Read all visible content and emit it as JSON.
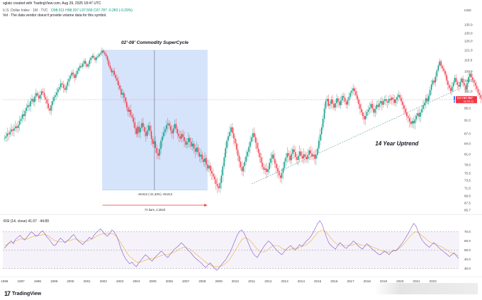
{
  "header": {
    "line1": "sglatz created with TradingView.com, Aug 29, 2025 18:47 UTC",
    "line2_prefix": "U.S. Dollar Index · 1M · TVC",
    "ohlc": "O98.011 H98.207 L97.556 C97.787 -0.283 (-0.29%)",
    "line3": "Vol · The data vendor doesn't provide volume data for this symbol."
  },
  "currency_label": "USD",
  "brand": {
    "logo_mark": "17",
    "name": "TradingView"
  },
  "colors": {
    "up": "#089981",
    "down": "#f23645",
    "box": "#d6e4fb",
    "trend": "#5b9aa8",
    "rsi": "#7e57c2",
    "rsi_ma": "#f2b02f"
  },
  "chart_data": [
    {
      "type": "candlestick",
      "title": "",
      "x_axis_years": [
        "1996",
        "1997",
        "1998",
        "1999",
        "2000",
        "2001",
        "2002",
        "2003",
        "2004",
        "2005",
        "2006",
        "2007",
        "2008",
        "2009",
        "2010",
        "2011",
        "2012",
        "2013",
        "2014",
        "2015",
        "2016",
        "2017",
        "2018",
        "2019",
        "2020",
        "2021",
        "2022"
      ],
      "y_ticks": [
        65.7,
        67.5,
        69.5,
        71.5,
        73.5,
        75.5,
        78.0,
        81.0,
        84.0,
        87.0,
        91.0,
        95.0,
        97.5,
        101.0,
        105.0,
        109.0,
        115.0,
        121.0,
        126.0,
        130.0,
        135.0
      ],
      "ylim": [
        65.7,
        135.0
      ],
      "last_price": {
        "symbol": "DXY",
        "value": "97.787",
        "countdown": "0d 05:13"
      },
      "monthly_closes": {
        "start": 1996.0,
        "step": 0.0833,
        "values": [
          85.7,
          86.2,
          87.1,
          86.8,
          87.6,
          88.3,
          87.9,
          88.6,
          89.2,
          88.7,
          89.6,
          90.8,
          91.5,
          93.0,
          92.4,
          94.1,
          95.2,
          96.0,
          95.6,
          97.3,
          98.1,
          97.0,
          99.0,
          100.3,
          99.4,
          98.2,
          99.6,
          101.0,
          100.4,
          98.8,
          97.9,
          96.5,
          95.0,
          94.2,
          96.0,
          97.3,
          98.8,
          99.5,
          100.6,
          101.8,
          102.5,
          104.0,
          103.6,
          102.2,
          101.5,
          103.0,
          104.6,
          105.8,
          107.1,
          108.5,
          107.6,
          106.2,
          107.9,
          109.4,
          110.8,
          112.0,
          111.5,
          113.2,
          114.6,
          113.0,
          111.6,
          112.8,
          114.9,
          116.5,
          117.7,
          116.4,
          115.1,
          116.8,
          117.4,
          118.6,
          119.4,
          120.8,
          119.6,
          118.7,
          117.3,
          114.8,
          112.1,
          110.4,
          108.6,
          109.3,
          107.5,
          106.1,
          105.0,
          103.2,
          101.9,
          99.7,
          100.4,
          98.6,
          97.1,
          95.3,
          93.8,
          94.5,
          92.7,
          91.9,
          90.4,
          88.6,
          86.9,
          89.1,
          87.4,
          88.8,
          90.2,
          89.0,
          87.6,
          86.3,
          88.0,
          89.4,
          87.8,
          85.4,
          83.9,
          84.7,
          82.8,
          81.3,
          80.6,
          82.5,
          84.9,
          86.2,
          87.5,
          88.4,
          89.6,
          90.1,
          89.3,
          88.0,
          87.1,
          88.6,
          89.9,
          88.4,
          87.0,
          86.2,
          85.5,
          86.9,
          86.0,
          84.8,
          83.7,
          84.4,
          85.7,
          84.6,
          83.2,
          84.0,
          82.6,
          81.7,
          82.9,
          81.5,
          80.3,
          80.9,
          79.6,
          78.8,
          79.9,
          78.1,
          76.9,
          77.8,
          76.2,
          75.4,
          74.6,
          73.8,
          72.6,
          72.0,
          71.5,
          72.8,
          74.9,
          77.6,
          80.1,
          82.7,
          84.9,
          86.3,
          87.5,
          88.9,
          87.2,
          85.6,
          84.1,
          82.3,
          80.6,
          78.9,
          77.3,
          76.1,
          77.6,
          78.9,
          80.4,
          81.7,
          83.1,
          84.6,
          85.9,
          87.2,
          86.0,
          84.3,
          82.6,
          81.4,
          80.1,
          78.6,
          77.4,
          76.5,
          76.9,
          75.9,
          76.7,
          78.6,
          79.8,
          80.9,
          79.7,
          78.3,
          77.0,
          76.1,
          74.9,
          74.2,
          75.6,
          77.1,
          78.9,
          80.1,
          81.3,
          80.6,
          79.3,
          81.1,
          82.4,
          81.6,
          80.2,
          79.4,
          80.6,
          81.8,
          80.5,
          79.8,
          81.0,
          80.3,
          79.6,
          80.8,
          82.1,
          81.2,
          80.4,
          80.9,
          79.7,
          80.8,
          82.6,
          84.9,
          86.8,
          88.9,
          91.5,
          94.9,
          97.3,
          98.1,
          95.8,
          96.4,
          97.9,
          96.5,
          95.2,
          96.6,
          98.3,
          97.1,
          96.0,
          97.5,
          99.2,
          98.6,
          97.1,
          96.2,
          97.6,
          98.9,
          100.4,
          101.2,
          102.1,
          101.0,
          99.5,
          97.9,
          96.3,
          94.8,
          93.6,
          92.4,
          91.3,
          92.5,
          93.8,
          94.6,
          95.2,
          96.4,
          94.9,
          93.5,
          94.8,
          96.1,
          95.4,
          96.6,
          97.3,
          96.1,
          97.4,
          98.0,
          97.2,
          96.8,
          98.1,
          97.6,
          98.6,
          97.9,
          96.7,
          97.8,
          98.9,
          99.6,
          98.4,
          97.2,
          96.0,
          94.8,
          93.6,
          92.4,
          91.8,
          90.6,
          89.9,
          90.8,
          90.1,
          91.3,
          92.5,
          93.4,
          92.2,
          93.6,
          94.8,
          95.9,
          96.8,
          98.4,
          97.2,
          99.4,
          101.5,
          103.6,
          105.1,
          104.3,
          106.8,
          109.5,
          112.1,
          114.4,
          111.9,
          110.6,
          109.3,
          107.6,
          105.0,
          103.4,
          102.2,
          101.1,
          102.8,
          104.3,
          106.2,
          104.6,
          103.4,
          102.7,
          104.5,
          105.9,
          104.1,
          103.2,
          101.6,
          104.1,
          106.6,
          108.1,
          106.4,
          105.4,
          104.2,
          103.1,
          101.9,
          100.4,
          99.6,
          98.4,
          97.8,
          99.1,
          97.3,
          96.5,
          97.8
        ]
      }
    },
    {
      "type": "line",
      "title": "",
      "legend": "RSI (14, close)  41.07  ·  44.89",
      "series": [
        {
          "name": "RSI",
          "values": [
            52,
            55,
            58,
            60,
            57,
            62,
            64,
            66,
            63,
            61,
            64,
            67,
            70,
            68,
            65,
            66,
            69,
            71,
            68,
            64,
            62,
            58,
            55,
            56,
            60,
            63,
            61,
            58,
            60,
            62,
            65,
            67,
            63,
            60,
            58,
            56,
            59,
            61,
            64,
            62,
            66,
            69,
            71,
            73,
            70,
            67,
            65,
            68,
            72,
            70,
            66,
            60,
            52,
            46,
            41,
            38,
            35,
            37,
            34,
            32,
            36,
            39,
            42,
            45,
            43,
            40,
            38,
            41,
            44,
            46,
            49,
            47,
            44,
            42,
            45,
            48,
            51,
            53,
            55,
            58,
            56,
            53,
            50,
            48,
            45,
            42,
            40,
            38,
            36,
            33,
            31,
            34,
            36,
            33,
            30,
            28,
            31,
            34,
            37,
            40,
            44,
            48,
            54,
            60,
            66,
            70,
            72,
            69,
            64,
            58,
            52,
            47,
            44,
            42,
            46,
            50,
            54,
            57,
            60,
            58,
            55,
            52,
            49,
            47,
            45,
            48,
            51,
            53,
            55,
            52,
            50,
            53,
            56,
            54,
            57,
            60,
            62,
            65,
            69,
            74,
            79,
            82,
            78,
            71,
            64,
            58,
            55,
            53,
            51,
            55,
            58,
            56,
            53,
            52,
            55,
            57,
            60,
            58,
            55,
            53,
            51,
            54,
            57,
            55,
            52,
            50,
            48,
            46,
            45,
            47,
            49,
            47,
            45,
            48,
            50,
            49,
            52,
            55,
            58,
            62,
            66,
            70,
            75,
            79,
            76,
            70,
            64,
            60,
            57,
            55,
            53,
            56,
            58,
            56,
            53,
            51,
            49,
            47,
            45,
            43,
            45,
            47,
            44,
            41
          ]
        },
        {
          "name": "RSI-based MA",
          "values": [
            55,
            56,
            57,
            58,
            59,
            60,
            61,
            62,
            62,
            62,
            62,
            63,
            64,
            65,
            66,
            66,
            66,
            67,
            67,
            66,
            65,
            63,
            61,
            60,
            59,
            59,
            59,
            59,
            60,
            60,
            61,
            62,
            62,
            61,
            60,
            59,
            59,
            60,
            61,
            62,
            63,
            65,
            66,
            67,
            68,
            68,
            68,
            68,
            68,
            67,
            65,
            62,
            58,
            54,
            50,
            46,
            43,
            41,
            39,
            37,
            37,
            37,
            38,
            39,
            40,
            41,
            41,
            41,
            42,
            43,
            44,
            45,
            45,
            45,
            46,
            47,
            48,
            49,
            51,
            52,
            53,
            53,
            52,
            51,
            49,
            47,
            45,
            43,
            41,
            39,
            37,
            35,
            34,
            33,
            32,
            32,
            32,
            33,
            34,
            36,
            38,
            41,
            45,
            49,
            53,
            57,
            61,
            63,
            63,
            62,
            60,
            57,
            54,
            51,
            49,
            48,
            48,
            49,
            51,
            53,
            55,
            55,
            55,
            54,
            52,
            51,
            50,
            50,
            51,
            52,
            52,
            52,
            53,
            54,
            55,
            56,
            58,
            60,
            63,
            66,
            69,
            71,
            72,
            71,
            69,
            66,
            63,
            60,
            58,
            56,
            55,
            55,
            55,
            55,
            55,
            55,
            56,
            57,
            57,
            56,
            55,
            55,
            55,
            55,
            54,
            53,
            52,
            51,
            50,
            49,
            48,
            48,
            48,
            48,
            49,
            50,
            51,
            53,
            55,
            58,
            61,
            64,
            67,
            69,
            70,
            69,
            67,
            65,
            63,
            61,
            59,
            58,
            57,
            56,
            55,
            54,
            53,
            51,
            50,
            48,
            47,
            46,
            45,
            44
          ]
        }
      ],
      "y_ticks": [
        30.0,
        40.0,
        50.0,
        60.0,
        70.0
      ],
      "ylim": [
        25,
        85
      ],
      "bands": {
        "overbought": 70,
        "middle": 50,
        "oversold": 30
      }
    }
  ],
  "annotations": {
    "box_label": "02'-08' Commodity SuperCycle",
    "measure": "-49.812 (-41.33%) -49,812",
    "measure_bars": "74 bars, 2,252d",
    "trend_label": "14 Year Uptrend",
    "exclaim": "!"
  }
}
